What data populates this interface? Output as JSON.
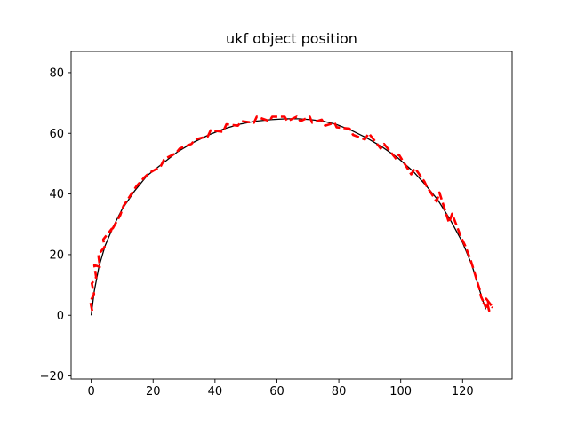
{
  "chart_data": {
    "type": "line",
    "title": "ukf object position",
    "xlabel": "",
    "ylabel": "",
    "xlim": [
      -6.5,
      136
    ],
    "ylim": [
      -21,
      87
    ],
    "x_ticks": [
      0,
      20,
      40,
      60,
      80,
      100,
      120
    ],
    "y_ticks": [
      -20,
      0,
      20,
      40,
      60,
      80
    ],
    "grid": false,
    "legend": "none",
    "colors": {
      "truth": "#000000",
      "estimate": "#ff0000"
    },
    "series": [
      {
        "style": "solid",
        "color": "#000000",
        "x": [
          0.0,
          1.0,
          2.5,
          4.5,
          7.0,
          10.0,
          14.0,
          18.0,
          23.0,
          28.0,
          33.0,
          38.0,
          43.0,
          48.0,
          53.0,
          58.0,
          63.0,
          67.0,
          71.0,
          75.0,
          79.0,
          84.0,
          89.0,
          94.0,
          99.0,
          104.0,
          108.0,
          112.0,
          116.0,
          120.0,
          123.0,
          125.0,
          126.5,
          127.5
        ],
        "y": [
          0.0,
          8.0,
          16.0,
          23.0,
          29.0,
          35.0,
          41.0,
          46.0,
          50.0,
          54.0,
          57.0,
          59.5,
          61.5,
          63.0,
          64.0,
          64.5,
          64.8,
          64.8,
          64.5,
          64.0,
          63.0,
          61.0,
          58.5,
          55.5,
          52.0,
          47.5,
          43.0,
          38.0,
          31.5,
          24.0,
          16.5,
          10.0,
          5.0,
          2.0
        ]
      },
      {
        "style": "dashed",
        "color": "#ff0000",
        "x": [
          0.3,
          -0.3,
          0.9,
          0.2,
          1.6,
          1.0,
          2.8,
          2.3,
          4.3,
          3.9,
          6.6,
          6.3,
          9.4,
          10.4,
          13.3,
          14.6,
          17.2,
          18.8,
          22.4,
          23.6,
          27.4,
          28.6,
          32.4,
          33.6,
          37.7,
          38.6,
          42.6,
          43.7,
          47.4,
          48.6,
          52.6,
          53.5,
          57.6,
          58.5,
          62.5,
          63.4,
          66.4,
          67.6,
          70.6,
          71.4,
          74.5,
          75.6,
          78.6,
          79.3,
          83.5,
          84.6,
          88.4,
          89.7,
          93.5,
          94.6,
          98.6,
          99.4,
          103.4,
          104.6,
          107.7,
          108.4,
          111.6,
          112.5,
          115.6,
          116.6,
          119.4,
          120.8,
          122.5,
          123.6,
          124.6,
          125.5,
          126.0,
          127.2,
          126.8,
          128.6,
          127.6,
          129.5,
          128.2,
          129.7
        ],
        "y": [
          1.5,
          4.5,
          7.0,
          10.5,
          12.5,
          16.5,
          16.0,
          20.0,
          22.5,
          25.0,
          28.5,
          27.5,
          33.0,
          36.0,
          40.5,
          42.5,
          45.5,
          47.0,
          49.0,
          51.5,
          53.5,
          55.0,
          56.5,
          58.0,
          59.0,
          61.0,
          60.5,
          63.0,
          62.5,
          64.0,
          63.5,
          65.5,
          64.0,
          65.5,
          65.5,
          64.0,
          65.5,
          64.0,
          65.5,
          63.5,
          64.5,
          62.5,
          63.5,
          62.0,
          61.5,
          59.5,
          58.0,
          60.0,
          55.0,
          56.5,
          51.5,
          53.0,
          46.5,
          48.5,
          44.0,
          42.5,
          37.5,
          40.5,
          30.5,
          33.5,
          26.0,
          23.0,
          18.5,
          15.0,
          11.5,
          8.5,
          6.0,
          3.5,
          4.0,
          1.5,
          5.5,
          3.0,
          4.5,
          2.5
        ]
      }
    ]
  }
}
